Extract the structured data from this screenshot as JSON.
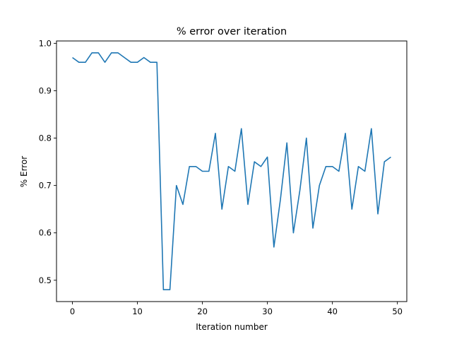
{
  "chart_data": {
    "type": "line",
    "title": "% error over iteration",
    "xlabel": "Iteration number",
    "ylabel": "% Error",
    "xlim": [
      -2.45,
      51.45
    ],
    "ylim": [
      0.455,
      1.005
    ],
    "xticks": [
      0,
      10,
      20,
      30,
      40,
      50
    ],
    "yticks": [
      0.5,
      0.6,
      0.7,
      0.8,
      0.9,
      1.0
    ],
    "ytick_labels": [
      "0.5",
      "0.6",
      "0.7",
      "0.8",
      "0.9",
      "1.0"
    ],
    "grid": false,
    "series_color": "#1f77b4",
    "series": [
      {
        "x": [
          0,
          1,
          2,
          3,
          4,
          5,
          6,
          7,
          8,
          9,
          10,
          11,
          12,
          13,
          14,
          15,
          16,
          17,
          18,
          19,
          20,
          21,
          22,
          23,
          24,
          25,
          26,
          27,
          28,
          29,
          30,
          31,
          32,
          33,
          34,
          35,
          36,
          37,
          38,
          39,
          40,
          41,
          42,
          43,
          44,
          45,
          46,
          47,
          48,
          49
        ],
        "values": [
          0.97,
          0.96,
          0.96,
          0.98,
          0.98,
          0.96,
          0.98,
          0.98,
          0.97,
          0.96,
          0.96,
          0.97,
          0.96,
          0.96,
          0.48,
          0.48,
          0.7,
          0.66,
          0.74,
          0.74,
          0.73,
          0.73,
          0.81,
          0.65,
          0.74,
          0.73,
          0.82,
          0.66,
          0.75,
          0.74,
          0.76,
          0.57,
          0.67,
          0.79,
          0.6,
          0.69,
          0.8,
          0.61,
          0.7,
          0.74,
          0.74,
          0.73,
          0.81,
          0.65,
          0.74,
          0.73,
          0.82,
          0.64,
          0.75,
          0.76
        ]
      }
    ]
  }
}
